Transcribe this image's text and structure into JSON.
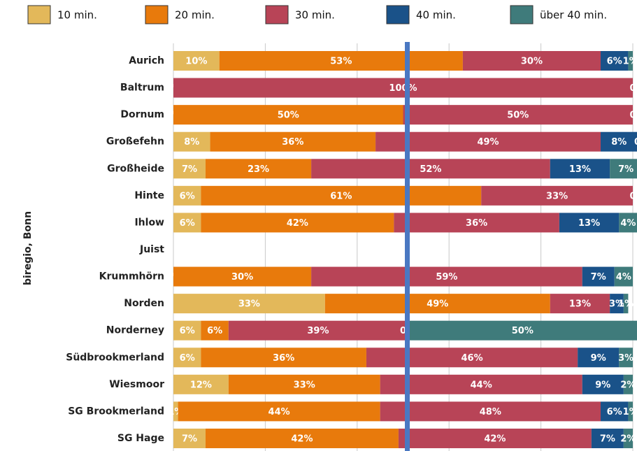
{
  "chart_data": {
    "type": "stacked-bar-horizontal",
    "ylabel": "biregio, Bonn",
    "categories": [
      "Aurich",
      "Baltrum",
      "Dornum",
      "Großefehn",
      "Großheide",
      "Hinte",
      "Ihlow",
      "Juist",
      "Krummhörn",
      "Norden",
      "Norderney",
      "Südbrookmerland",
      "Wiesmoor",
      "SG Brookmerland",
      "SG Hage"
    ],
    "xlim": [
      0,
      100
    ],
    "xticks": [
      0,
      20,
      40,
      60,
      80,
      100
    ],
    "grid": true,
    "series": [
      {
        "name": "10 min.",
        "color": "#e3b85a",
        "values": [
          10,
          0,
          0,
          8,
          7,
          6,
          6,
          null,
          0,
          33,
          6,
          6,
          12,
          1,
          7
        ],
        "value_labels": [
          "10%",
          "0%",
          "0%",
          "8%",
          "7%",
          "6%",
          "6%",
          null,
          "0%",
          "33%",
          "6%",
          "6%",
          "12%",
          "1%",
          "7%"
        ]
      },
      {
        "name": "20 min.",
        "color": "#e87a0c",
        "values": [
          53,
          0,
          50,
          36,
          23,
          61,
          42,
          null,
          30,
          49,
          6,
          36,
          33,
          44,
          42
        ],
        "value_labels": [
          "53%",
          null,
          "50%",
          "36%",
          "23%",
          "61%",
          "42%",
          null,
          "30%",
          "49%",
          "6%",
          "36%",
          "33%",
          "44%",
          "42%"
        ]
      },
      {
        "name": "30 min.",
        "color": "#b84457",
        "values": [
          30,
          100,
          50,
          49,
          52,
          33,
          36,
          null,
          59,
          13,
          39,
          46,
          44,
          48,
          42
        ],
        "value_labels": [
          "30%",
          "100%",
          "50%",
          "49%",
          "52%",
          "33%",
          "36%",
          null,
          "59%",
          "13%",
          "39%",
          "46%",
          "44%",
          "48%",
          "42%"
        ]
      },
      {
        "name": "40 min.",
        "color": "#1a5289",
        "values": [
          6,
          0,
          0,
          8,
          13,
          0,
          13,
          null,
          7,
          3,
          0,
          9,
          9,
          6,
          7
        ],
        "value_labels": [
          "6%",
          null,
          null,
          "8%",
          "13%",
          null,
          "13%",
          null,
          "7%",
          "3%",
          "0%",
          "9%",
          "9%",
          "6%",
          "7%"
        ]
      },
      {
        "name": "über 40 min.",
        "color": "#3f7b7b",
        "values": [
          1,
          0,
          0,
          0,
          7,
          0,
          4,
          null,
          4,
          1,
          50,
          3,
          2,
          1,
          2
        ],
        "value_labels": [
          "1%",
          "0",
          "0",
          "0",
          "7%",
          "0",
          "4%",
          null,
          "4%",
          "1%",
          "50%",
          "3%",
          "2%",
          "1%",
          "2%"
        ]
      }
    ]
  }
}
